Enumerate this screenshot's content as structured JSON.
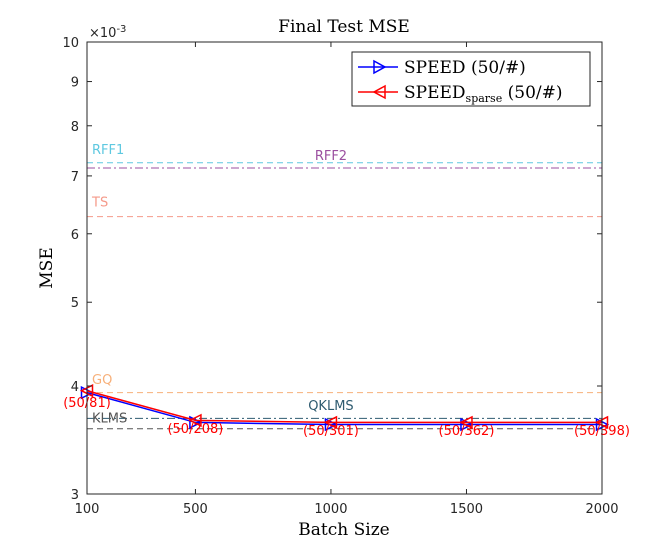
{
  "chart_data": {
    "type": "line",
    "title": "Final Test MSE",
    "xlabel": "Batch Size",
    "ylabel": "MSE",
    "y_scale": "log",
    "y_exponent_label": "×10",
    "y_exponent_power": "-3",
    "xlim": [
      100,
      2000
    ],
    "ylim": [
      3,
      10
    ],
    "x_ticks": [
      100,
      500,
      1000,
      1500,
      2000
    ],
    "y_ticks": [
      3,
      4,
      5,
      6,
      7,
      8,
      9,
      10
    ],
    "x": [
      100,
      500,
      1000,
      1500,
      2000
    ],
    "series": [
      {
        "name": "SPEED (50/#)",
        "legend_main": "SPEED",
        "legend_sub": "",
        "legend_suffix": " (50/#)",
        "color": "#0000ff",
        "marker": "triangle-right",
        "values": [
          3.93,
          3.63,
          3.61,
          3.61,
          3.61
        ]
      },
      {
        "name": "SPEED_sparse (50/#)",
        "legend_main": "SPEED",
        "legend_sub": "sparse",
        "legend_suffix": " (50/#)",
        "color": "#ff0000",
        "marker": "triangle-left",
        "values": [
          3.95,
          3.65,
          3.63,
          3.63,
          3.63
        ]
      }
    ],
    "point_labels": [
      {
        "text": "(50/81)",
        "x": 100,
        "y": 3.78
      },
      {
        "text": "(50/208)",
        "x": 500,
        "y": 3.53
      },
      {
        "text": "(50/301)",
        "x": 1000,
        "y": 3.51
      },
      {
        "text": "(50/362)",
        "x": 1500,
        "y": 3.51
      },
      {
        "text": "(50/398)",
        "x": 2000,
        "y": 3.51
      }
    ],
    "reference_lines": [
      {
        "name": "RFF1",
        "value": 7.25,
        "color": "#5ec8e0",
        "dash": "dashed",
        "label_x": 100,
        "label_y": 7.42,
        "anchor": "start"
      },
      {
        "name": "RFF2",
        "value": 7.15,
        "color": "#9b4fa0",
        "dash": "dashdot",
        "label_x": 1000,
        "label_y": 7.3,
        "anchor": "middle"
      },
      {
        "name": "TS",
        "value": 6.28,
        "color": "#f59a8a",
        "dash": "dashed",
        "label_x": 100,
        "label_y": 6.45,
        "anchor": "start"
      },
      {
        "name": "GQ",
        "value": 3.93,
        "color": "#f7b07a",
        "dash": "dashed",
        "label_x": 100,
        "label_y": 4.02,
        "anchor": "start"
      },
      {
        "name": "QKLMS",
        "value": 3.67,
        "color": "#2e5b70",
        "dash": "dashdot",
        "label_x": 1000,
        "label_y": 3.75,
        "anchor": "middle"
      },
      {
        "name": "KLMS",
        "value": 3.57,
        "color": "#555555",
        "dash": "dashed",
        "label_x": 100,
        "label_y": 3.63,
        "anchor": "start"
      }
    ],
    "legend_position": "top-right",
    "grid": false
  }
}
